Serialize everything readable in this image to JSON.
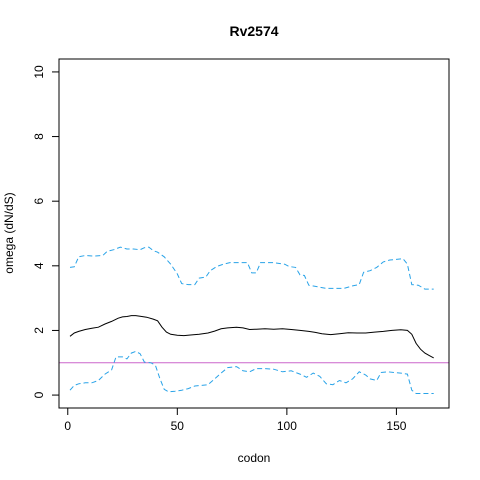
{
  "chart_data": {
    "type": "line",
    "title": "Rv2574",
    "xlabel": "codon",
    "ylabel": "omega (dN/dS)",
    "xlim": [
      -4,
      174
    ],
    "ylim": [
      -0.4,
      10.4
    ],
    "x_ticks": [
      0,
      50,
      100,
      150
    ],
    "y_ticks": [
      0,
      2,
      4,
      6,
      8,
      10
    ],
    "reference_line": {
      "y": 1,
      "color": "#cc66cc"
    },
    "grid": false,
    "legend": "none",
    "series": [
      {
        "role": "estimate",
        "color": "#000000",
        "dash": "solid",
        "points": [
          [
            1,
            1.82
          ],
          [
            3,
            1.92
          ],
          [
            5,
            1.97
          ],
          [
            8,
            2.03
          ],
          [
            11,
            2.07
          ],
          [
            14,
            2.1
          ],
          [
            17,
            2.2
          ],
          [
            20,
            2.28
          ],
          [
            23,
            2.38
          ],
          [
            25,
            2.42
          ],
          [
            27,
            2.43
          ],
          [
            29,
            2.46
          ],
          [
            31,
            2.46
          ],
          [
            33,
            2.44
          ],
          [
            36,
            2.41
          ],
          [
            39,
            2.35
          ],
          [
            41,
            2.3
          ],
          [
            43,
            2.1
          ],
          [
            45,
            1.95
          ],
          [
            47,
            1.88
          ],
          [
            50,
            1.85
          ],
          [
            53,
            1.84
          ],
          [
            56,
            1.86
          ],
          [
            60,
            1.88
          ],
          [
            64,
            1.92
          ],
          [
            67,
            1.98
          ],
          [
            70,
            2.05
          ],
          [
            73,
            2.08
          ],
          [
            77,
            2.1
          ],
          [
            80,
            2.08
          ],
          [
            83,
            2.03
          ],
          [
            86,
            2.04
          ],
          [
            90,
            2.05
          ],
          [
            94,
            2.04
          ],
          [
            98,
            2.05
          ],
          [
            102,
            2.03
          ],
          [
            106,
            2.0
          ],
          [
            110,
            1.97
          ],
          [
            113,
            1.94
          ],
          [
            116,
            1.9
          ],
          [
            120,
            1.87
          ],
          [
            124,
            1.9
          ],
          [
            128,
            1.93
          ],
          [
            132,
            1.92
          ],
          [
            136,
            1.92
          ],
          [
            140,
            1.95
          ],
          [
            144,
            1.97
          ],
          [
            148,
            2.0
          ],
          [
            152,
            2.02
          ],
          [
            155,
            2.0
          ],
          [
            157,
            1.88
          ],
          [
            159,
            1.6
          ],
          [
            161,
            1.42
          ],
          [
            163,
            1.3
          ],
          [
            165,
            1.22
          ],
          [
            167,
            1.15
          ]
        ]
      },
      {
        "role": "upper",
        "color": "#29a3e8",
        "dash": "dashed",
        "points": [
          [
            1,
            3.95
          ],
          [
            3,
            3.97
          ],
          [
            5,
            4.28
          ],
          [
            8,
            4.32
          ],
          [
            12,
            4.3
          ],
          [
            16,
            4.32
          ],
          [
            18,
            4.45
          ],
          [
            21,
            4.5
          ],
          [
            24,
            4.58
          ],
          [
            27,
            4.52
          ],
          [
            30,
            4.52
          ],
          [
            33,
            4.5
          ],
          [
            35,
            4.56
          ],
          [
            37,
            4.58
          ],
          [
            39,
            4.47
          ],
          [
            41,
            4.42
          ],
          [
            44,
            4.28
          ],
          [
            47,
            4.05
          ],
          [
            50,
            3.75
          ],
          [
            52,
            3.45
          ],
          [
            55,
            3.42
          ],
          [
            58,
            3.42
          ],
          [
            60,
            3.62
          ],
          [
            63,
            3.65
          ],
          [
            65,
            3.85
          ],
          [
            68,
            3.98
          ],
          [
            71,
            4.05
          ],
          [
            74,
            4.1
          ],
          [
            78,
            4.1
          ],
          [
            82,
            4.1
          ],
          [
            84,
            3.78
          ],
          [
            86,
            3.78
          ],
          [
            88,
            4.1
          ],
          [
            91,
            4.1
          ],
          [
            94,
            4.1
          ],
          [
            97,
            4.07
          ],
          [
            99,
            4.05
          ],
          [
            101,
            3.98
          ],
          [
            104,
            3.95
          ],
          [
            106,
            3.72
          ],
          [
            108,
            3.7
          ],
          [
            110,
            3.4
          ],
          [
            114,
            3.35
          ],
          [
            118,
            3.3
          ],
          [
            122,
            3.3
          ],
          [
            126,
            3.3
          ],
          [
            130,
            3.38
          ],
          [
            133,
            3.42
          ],
          [
            135,
            3.8
          ],
          [
            138,
            3.85
          ],
          [
            141,
            3.95
          ],
          [
            144,
            4.12
          ],
          [
            147,
            4.18
          ],
          [
            150,
            4.2
          ],
          [
            153,
            4.22
          ],
          [
            155,
            4.05
          ],
          [
            157,
            3.42
          ],
          [
            160,
            3.4
          ],
          [
            163,
            3.28
          ],
          [
            167,
            3.28
          ]
        ]
      },
      {
        "role": "lower",
        "color": "#29a3e8",
        "dash": "dashed",
        "points": [
          [
            1,
            0.15
          ],
          [
            3,
            0.3
          ],
          [
            5,
            0.35
          ],
          [
            8,
            0.38
          ],
          [
            11,
            0.38
          ],
          [
            14,
            0.45
          ],
          [
            17,
            0.65
          ],
          [
            20,
            0.78
          ],
          [
            22,
            1.18
          ],
          [
            25,
            1.18
          ],
          [
            27,
            1.12
          ],
          [
            29,
            1.3
          ],
          [
            31,
            1.35
          ],
          [
            33,
            1.28
          ],
          [
            35,
            1.02
          ],
          [
            38,
            1.0
          ],
          [
            40,
            0.92
          ],
          [
            42,
            0.52
          ],
          [
            44,
            0.18
          ],
          [
            46,
            0.1
          ],
          [
            49,
            0.12
          ],
          [
            52,
            0.15
          ],
          [
            55,
            0.2
          ],
          [
            58,
            0.28
          ],
          [
            61,
            0.3
          ],
          [
            64,
            0.32
          ],
          [
            67,
            0.5
          ],
          [
            70,
            0.68
          ],
          [
            73,
            0.85
          ],
          [
            77,
            0.88
          ],
          [
            80,
            0.75
          ],
          [
            83,
            0.72
          ],
          [
            86,
            0.82
          ],
          [
            90,
            0.82
          ],
          [
            94,
            0.8
          ],
          [
            98,
            0.72
          ],
          [
            102,
            0.75
          ],
          [
            106,
            0.65
          ],
          [
            109,
            0.55
          ],
          [
            112,
            0.68
          ],
          [
            115,
            0.58
          ],
          [
            118,
            0.35
          ],
          [
            121,
            0.32
          ],
          [
            124,
            0.45
          ],
          [
            127,
            0.38
          ],
          [
            130,
            0.5
          ],
          [
            133,
            0.72
          ],
          [
            136,
            0.62
          ],
          [
            138,
            0.5
          ],
          [
            141,
            0.45
          ],
          [
            143,
            0.7
          ],
          [
            146,
            0.72
          ],
          [
            149,
            0.7
          ],
          [
            152,
            0.68
          ],
          [
            155,
            0.65
          ],
          [
            157,
            0.15
          ],
          [
            159,
            0.05
          ],
          [
            162,
            0.05
          ],
          [
            167,
            0.05
          ]
        ]
      }
    ]
  }
}
